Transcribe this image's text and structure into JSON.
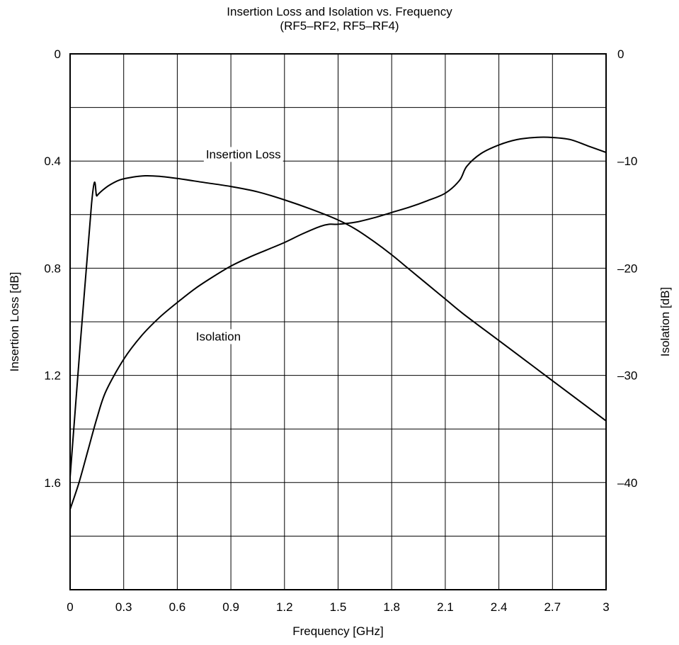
{
  "chart_data": {
    "type": "line",
    "title": "Insertion Loss and Isolation vs. Frequency",
    "subtitle": "(RF5–RF2, RF5–RF4)",
    "xlabel": "Frequency [GHz]",
    "ylabel_left": "Insertion Loss [dB]",
    "ylabel_right": "Isolation [dB]",
    "xlim": [
      0,
      3
    ],
    "ylim_left": [
      0,
      2.0
    ],
    "ylim_left_inverted": true,
    "ylim_right": [
      -50,
      0
    ],
    "x_ticks": [
      "0",
      "0.3",
      "0.6",
      "0.9",
      "1.2",
      "1.5",
      "1.8",
      "2.1",
      "2.4",
      "2.7",
      "3"
    ],
    "y_left_ticks": [
      "0",
      "0.4",
      "0.8",
      "1.2",
      "1.6"
    ],
    "y_right_ticks": [
      "0",
      "–10",
      "–20",
      "–30",
      "–40"
    ],
    "grid": true,
    "series": [
      {
        "name": "Insertion Loss",
        "axis": "left",
        "x": [
          0,
          0.12,
          0.15,
          0.18,
          0.22,
          0.28,
          0.35,
          0.42,
          0.5,
          0.6,
          0.75,
          0.9,
          1.05,
          1.2,
          1.35,
          1.5,
          1.6,
          1.7,
          1.8,
          1.9,
          2.0,
          2.1,
          2.2,
          2.4,
          2.6,
          2.8,
          3.0
        ],
        "y": [
          1.58,
          0.56,
          0.53,
          0.51,
          0.49,
          0.47,
          0.46,
          0.455,
          0.457,
          0.465,
          0.48,
          0.495,
          0.515,
          0.545,
          0.58,
          0.62,
          0.655,
          0.7,
          0.75,
          0.805,
          0.86,
          0.915,
          0.97,
          1.07,
          1.17,
          1.27,
          1.37
        ]
      },
      {
        "name": "Isolation",
        "axis": "right",
        "x": [
          0,
          0.05,
          0.1,
          0.15,
          0.2,
          0.3,
          0.4,
          0.5,
          0.6,
          0.7,
          0.8,
          0.9,
          1.0,
          1.1,
          1.2,
          1.3,
          1.4,
          1.45,
          1.5,
          1.6,
          1.7,
          1.8,
          1.9,
          2.0,
          2.1,
          2.18,
          2.22,
          2.3,
          2.4,
          2.5,
          2.6,
          2.7,
          2.8,
          2.9,
          3.0
        ],
        "y": [
          -42.5,
          -40,
          -37,
          -34,
          -31.5,
          -28.5,
          -26.3,
          -24.6,
          -23.2,
          -21.9,
          -20.8,
          -19.8,
          -19,
          -18.3,
          -17.6,
          -16.8,
          -16.1,
          -15.9,
          -15.9,
          -15.7,
          -15.3,
          -14.8,
          -14.3,
          -13.7,
          -13,
          -11.8,
          -10.5,
          -9.3,
          -8.5,
          -8,
          -7.8,
          -7.8,
          -8,
          -8.6,
          -9.2
        ]
      }
    ],
    "annotations": [
      {
        "text": "Insertion Loss",
        "x": 0.97,
        "y_left": 0.39
      },
      {
        "text": "Isolation",
        "x": 0.83,
        "y_left": 1.07
      }
    ]
  }
}
